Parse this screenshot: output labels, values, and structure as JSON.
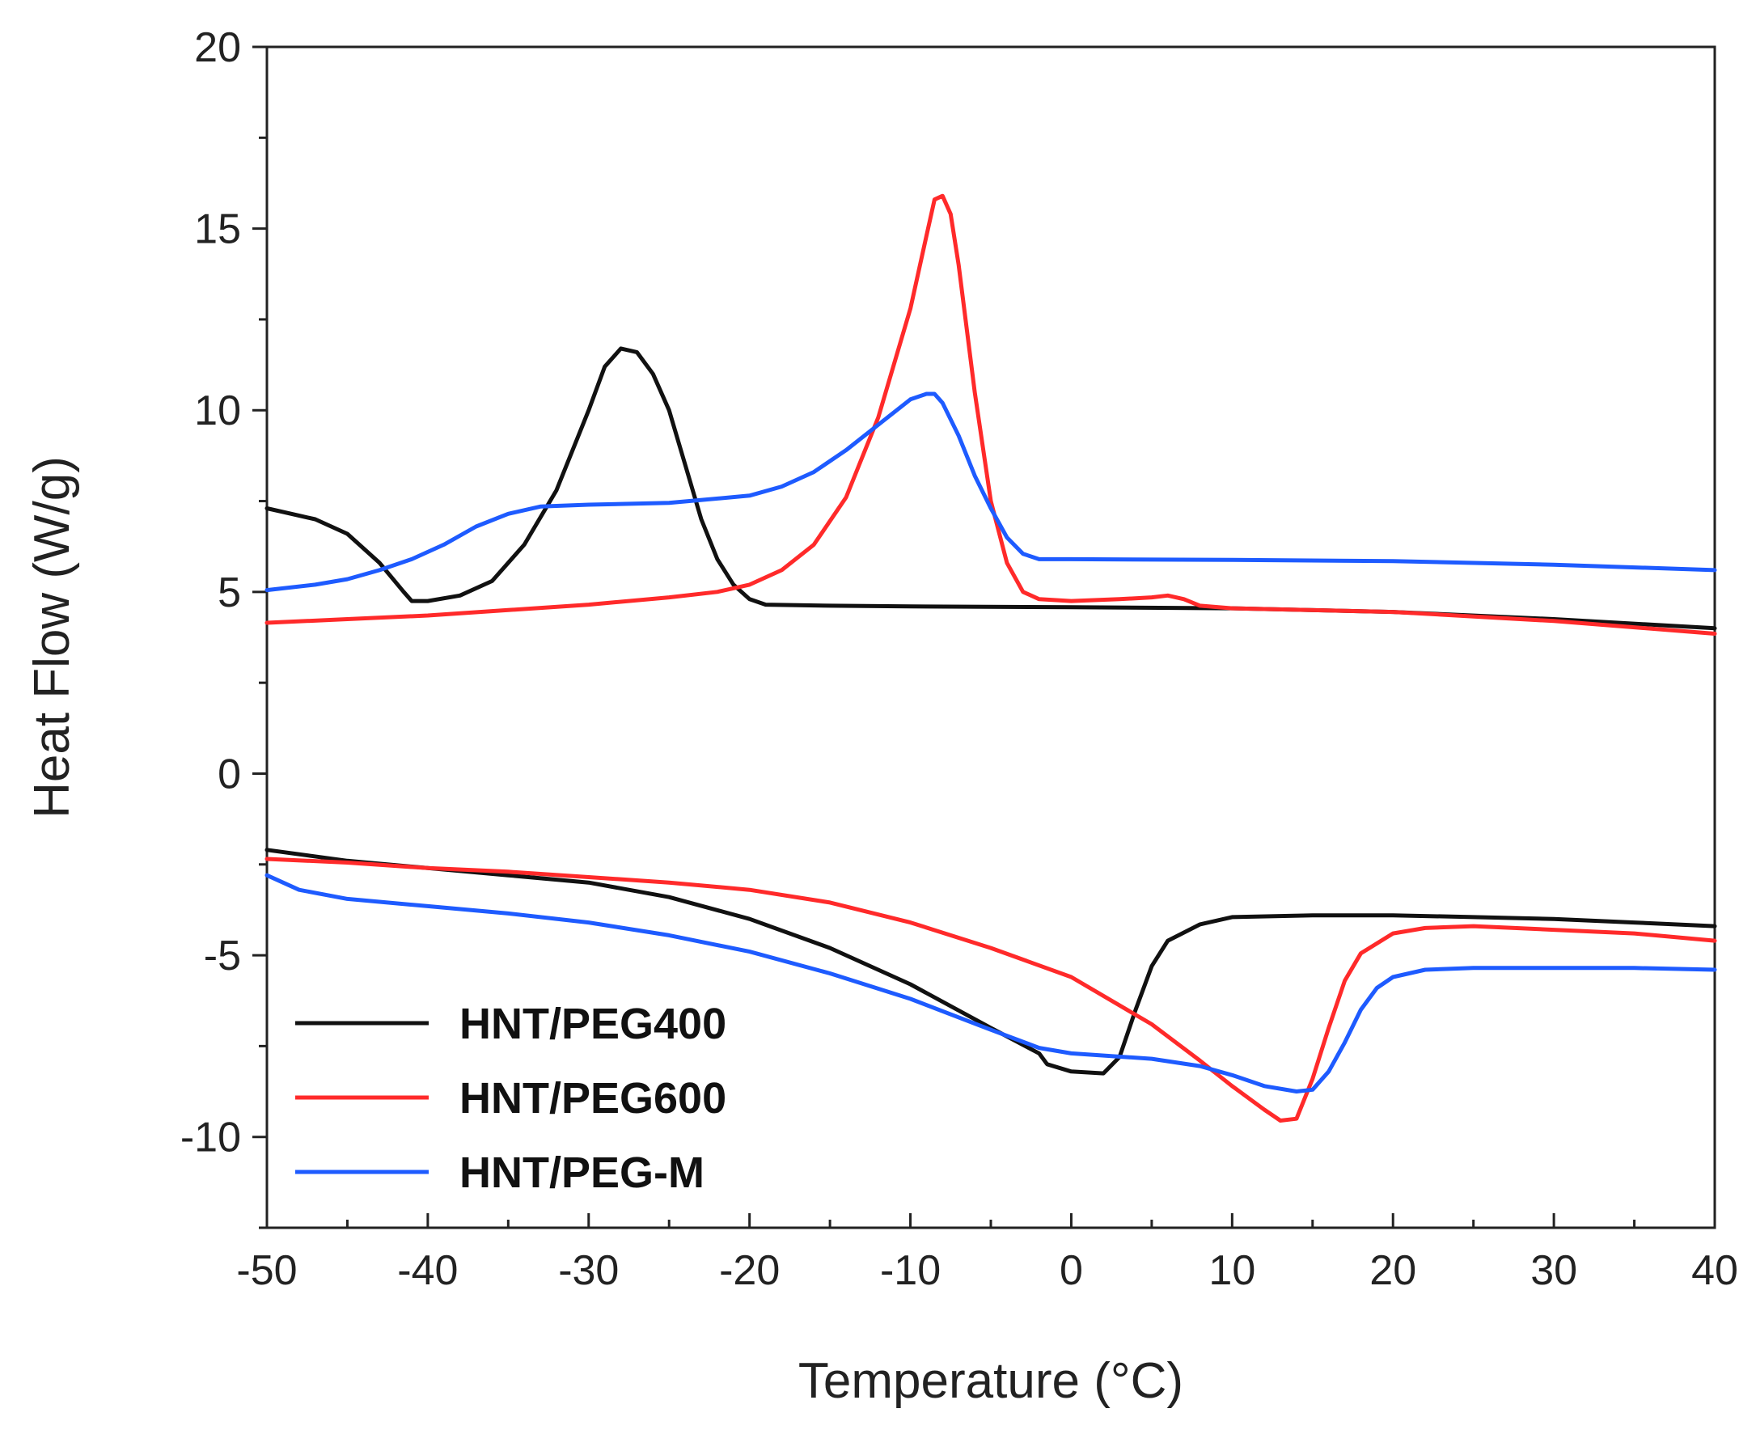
{
  "chart_data": {
    "type": "line",
    "title": "",
    "xlabel": "Temperature (°C)",
    "ylabel": "Heat Flow (W/g)",
    "xlim": [
      -50,
      40
    ],
    "ylim": [
      -12.5,
      20
    ],
    "xticks": [
      -50,
      -40,
      -30,
      -20,
      -10,
      0,
      10,
      20,
      30,
      40
    ],
    "yticks": [
      -10,
      -5,
      0,
      5,
      10,
      15,
      20
    ],
    "xtick_labels": [
      "-50",
      "-40",
      "-30",
      "-20",
      "-10",
      "0",
      "10",
      "20",
      "30",
      "40"
    ],
    "ytick_labels": [
      "-10",
      "-5",
      "0",
      "5",
      "10",
      "15",
      "20"
    ],
    "legend_position": "bottom-left",
    "series": [
      {
        "name": "HNT/PEG400",
        "color": "#111111",
        "segments": [
          [
            [
              -50,
              7.3
            ],
            [
              -47,
              7.0
            ],
            [
              -45,
              6.6
            ],
            [
              -43,
              5.8
            ],
            [
              -41.5,
              5.0
            ],
            [
              -41,
              4.75
            ],
            [
              -40,
              4.75
            ],
            [
              -38,
              4.9
            ],
            [
              -36,
              5.3
            ],
            [
              -34,
              6.3
            ],
            [
              -32,
              7.8
            ],
            [
              -30,
              10.0
            ],
            [
              -29,
              11.2
            ],
            [
              -28,
              11.7
            ],
            [
              -27,
              11.6
            ],
            [
              -26,
              11.0
            ],
            [
              -25,
              10.0
            ],
            [
              -24,
              8.5
            ],
            [
              -23,
              7.0
            ],
            [
              -22,
              5.9
            ],
            [
              -21,
              5.2
            ],
            [
              -20,
              4.8
            ],
            [
              -19,
              4.65
            ],
            [
              -15,
              4.62
            ],
            [
              -10,
              4.6
            ],
            [
              0,
              4.58
            ],
            [
              10,
              4.55
            ],
            [
              20,
              4.45
            ],
            [
              30,
              4.25
            ],
            [
              40,
              4.0
            ]
          ],
          [
            [
              -50,
              -2.1
            ],
            [
              -45,
              -2.4
            ],
            [
              -40,
              -2.6
            ],
            [
              -35,
              -2.8
            ],
            [
              -30,
              -3.0
            ],
            [
              -25,
              -3.4
            ],
            [
              -20,
              -4.0
            ],
            [
              -15,
              -4.8
            ],
            [
              -10,
              -5.8
            ],
            [
              -5,
              -7.0
            ],
            [
              -2,
              -7.7
            ],
            [
              -1.5,
              -8.0
            ],
            [
              0,
              -8.2
            ],
            [
              2,
              -8.25
            ],
            [
              3,
              -7.8
            ],
            [
              4,
              -6.5
            ],
            [
              5,
              -5.3
            ],
            [
              6,
              -4.6
            ],
            [
              8,
              -4.15
            ],
            [
              10,
              -3.95
            ],
            [
              15,
              -3.9
            ],
            [
              20,
              -3.9
            ],
            [
              25,
              -3.95
            ],
            [
              30,
              -4.0
            ],
            [
              35,
              -4.1
            ],
            [
              40,
              -4.2
            ]
          ]
        ]
      },
      {
        "name": "HNT/PEG600",
        "color": "#ff2a2a",
        "segments": [
          [
            [
              -50,
              4.15
            ],
            [
              -45,
              4.25
            ],
            [
              -40,
              4.35
            ],
            [
              -35,
              4.5
            ],
            [
              -30,
              4.65
            ],
            [
              -25,
              4.85
            ],
            [
              -22,
              5.0
            ],
            [
              -20,
              5.2
            ],
            [
              -18,
              5.6
            ],
            [
              -16,
              6.3
            ],
            [
              -14,
              7.6
            ],
            [
              -12,
              9.8
            ],
            [
              -10,
              12.8
            ],
            [
              -9,
              14.8
            ],
            [
              -8.5,
              15.8
            ],
            [
              -8,
              15.9
            ],
            [
              -7.5,
              15.4
            ],
            [
              -7,
              14.0
            ],
            [
              -6,
              10.5
            ],
            [
              -5,
              7.5
            ],
            [
              -4,
              5.8
            ],
            [
              -3,
              5.0
            ],
            [
              -2,
              4.8
            ],
            [
              0,
              4.75
            ],
            [
              3,
              4.8
            ],
            [
              5,
              4.85
            ],
            [
              6,
              4.9
            ],
            [
              7,
              4.8
            ],
            [
              8,
              4.62
            ],
            [
              10,
              4.55
            ],
            [
              20,
              4.45
            ],
            [
              30,
              4.2
            ],
            [
              40,
              3.85
            ]
          ],
          [
            [
              -50,
              -2.35
            ],
            [
              -45,
              -2.45
            ],
            [
              -40,
              -2.6
            ],
            [
              -35,
              -2.7
            ],
            [
              -30,
              -2.85
            ],
            [
              -25,
              -3.0
            ],
            [
              -20,
              -3.2
            ],
            [
              -15,
              -3.55
            ],
            [
              -10,
              -4.1
            ],
            [
              -5,
              -4.8
            ],
            [
              0,
              -5.6
            ],
            [
              5,
              -6.9
            ],
            [
              8,
              -7.9
            ],
            [
              10,
              -8.6
            ],
            [
              12,
              -9.25
            ],
            [
              13,
              -9.55
            ],
            [
              14,
              -9.5
            ],
            [
              15,
              -8.4
            ],
            [
              16,
              -7.0
            ],
            [
              17,
              -5.7
            ],
            [
              18,
              -4.95
            ],
            [
              20,
              -4.4
            ],
            [
              22,
              -4.25
            ],
            [
              25,
              -4.2
            ],
            [
              30,
              -4.3
            ],
            [
              35,
              -4.4
            ],
            [
              40,
              -4.6
            ]
          ]
        ]
      },
      {
        "name": "HNT/PEG-M",
        "color": "#1e5bff",
        "segments": [
          [
            [
              -50,
              5.05
            ],
            [
              -47,
              5.2
            ],
            [
              -45,
              5.35
            ],
            [
              -43,
              5.6
            ],
            [
              -41,
              5.9
            ],
            [
              -39,
              6.3
            ],
            [
              -37,
              6.8
            ],
            [
              -35,
              7.15
            ],
            [
              -33,
              7.35
            ],
            [
              -30,
              7.4
            ],
            [
              -25,
              7.45
            ],
            [
              -20,
              7.65
            ],
            [
              -18,
              7.9
            ],
            [
              -16,
              8.3
            ],
            [
              -14,
              8.9
            ],
            [
              -12,
              9.6
            ],
            [
              -10,
              10.3
            ],
            [
              -9,
              10.45
            ],
            [
              -8.5,
              10.45
            ],
            [
              -8,
              10.2
            ],
            [
              -7,
              9.3
            ],
            [
              -6,
              8.2
            ],
            [
              -5,
              7.3
            ],
            [
              -4,
              6.5
            ],
            [
              -3,
              6.05
            ],
            [
              -2,
              5.9
            ],
            [
              0,
              5.9
            ],
            [
              10,
              5.88
            ],
            [
              20,
              5.85
            ],
            [
              30,
              5.75
            ],
            [
              40,
              5.6
            ]
          ],
          [
            [
              -50,
              -2.8
            ],
            [
              -48,
              -3.2
            ],
            [
              -45,
              -3.45
            ],
            [
              -40,
              -3.65
            ],
            [
              -35,
              -3.85
            ],
            [
              -30,
              -4.1
            ],
            [
              -25,
              -4.45
            ],
            [
              -20,
              -4.9
            ],
            [
              -15,
              -5.5
            ],
            [
              -10,
              -6.2
            ],
            [
              -5,
              -7.05
            ],
            [
              -2,
              -7.55
            ],
            [
              0,
              -7.7
            ],
            [
              5,
              -7.85
            ],
            [
              8,
              -8.05
            ],
            [
              10,
              -8.3
            ],
            [
              12,
              -8.6
            ],
            [
              14,
              -8.75
            ],
            [
              15,
              -8.7
            ],
            [
              16,
              -8.2
            ],
            [
              17,
              -7.4
            ],
            [
              18,
              -6.5
            ],
            [
              19,
              -5.9
            ],
            [
              20,
              -5.6
            ],
            [
              22,
              -5.4
            ],
            [
              25,
              -5.35
            ],
            [
              30,
              -5.35
            ],
            [
              35,
              -5.35
            ],
            [
              40,
              -5.4
            ]
          ]
        ]
      }
    ]
  }
}
